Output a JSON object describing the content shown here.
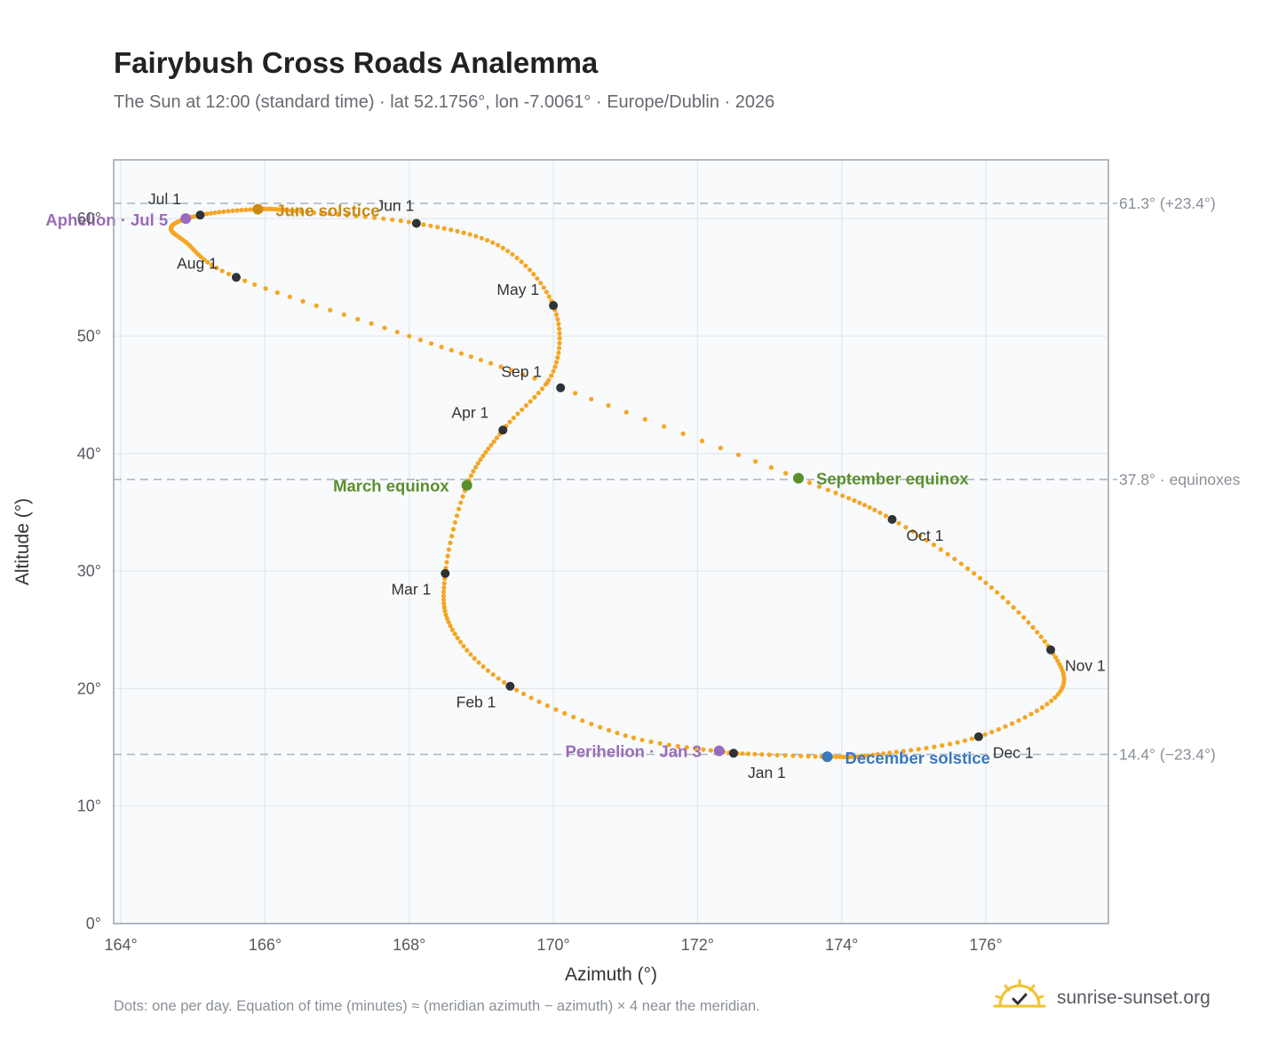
{
  "header": {
    "title": "Fairybush Cross Roads Analemma",
    "subtitle": "The Sun at 12:00 (standard time) · lat 52.1756°, lon -7.0061° · Europe/Dublin · 2026"
  },
  "footer": {
    "note": "Dots: one per day. Equation of time (minutes) ≈ (meridian azimuth − azimuth) × 4 near the meridian.",
    "brand": "sunrise-sunset.org",
    "brand_icon": "sun-check-icon"
  },
  "chart_data": {
    "type": "scatter",
    "xlabel": "Azimuth (°)",
    "ylabel": "Altitude (°)",
    "xlim": [
      163.9,
      177.7
    ],
    "ylim": [
      0,
      65
    ],
    "xticks": [
      164,
      166,
      168,
      170,
      172,
      174,
      176
    ],
    "yticks": [
      0,
      10,
      20,
      30,
      40,
      50,
      60
    ],
    "tick_suffix": "°",
    "grid": true,
    "colors": {
      "curve": "#f5a623",
      "month_marker": "#2f3237",
      "equinox": "#5a8f2e",
      "june_solstice": "#c98a12",
      "december_solstice": "#3a78c0",
      "apsis": "#9a6bb8",
      "reference_line": "#aab4c0",
      "plot_background": "#f8fafc",
      "plot_border": "#9aa4b0",
      "grid": "#e3e8ee"
    },
    "reference_lines": [
      {
        "y": 61.3,
        "label": "61.3° (+23.4°)"
      },
      {
        "y": 37.8,
        "label": "37.8° · equinoxes"
      },
      {
        "y": 14.4,
        "label": "14.4° (−23.4°)"
      }
    ],
    "month_markers": [
      {
        "label": "Jan 1",
        "x": 172.5,
        "y": 14.5
      },
      {
        "label": "Feb 1",
        "x": 169.4,
        "y": 20.2
      },
      {
        "label": "Mar 1",
        "x": 168.5,
        "y": 29.8
      },
      {
        "label": "Apr 1",
        "x": 169.3,
        "y": 42.0
      },
      {
        "label": "May 1",
        "x": 170.0,
        "y": 52.6
      },
      {
        "label": "Jun 1",
        "x": 168.1,
        "y": 59.6
      },
      {
        "label": "Jul 1",
        "x": 165.1,
        "y": 60.3
      },
      {
        "label": "Aug 1",
        "x": 165.6,
        "y": 55.0
      },
      {
        "label": "Sep 1",
        "x": 170.1,
        "y": 45.6
      },
      {
        "label": "Oct 1",
        "x": 174.7,
        "y": 34.4
      },
      {
        "label": "Nov 1",
        "x": 176.9,
        "y": 23.3
      },
      {
        "label": "Dec 1",
        "x": 175.9,
        "y": 15.9
      }
    ],
    "events": [
      {
        "label": "June solstice",
        "x": 165.9,
        "y": 60.8,
        "kind": "june_solstice"
      },
      {
        "label": "Aphelion · Jul 5",
        "x": 164.9,
        "y": 60.0,
        "kind": "apsis"
      },
      {
        "label": "March equinox",
        "x": 168.8,
        "y": 37.3,
        "kind": "equinox"
      },
      {
        "label": "September equinox",
        "x": 173.4,
        "y": 37.9,
        "kind": "equinox"
      },
      {
        "label": "Perihelion · Jan 3",
        "x": 172.3,
        "y": 14.7,
        "kind": "apsis"
      },
      {
        "label": "December solstice",
        "x": 173.8,
        "y": 14.2,
        "kind": "december_solstice"
      }
    ],
    "daily_path": {
      "description_points_per_day": 1,
      "anchors": [
        [
          172.5,
          14.5
        ],
        [
          171.0,
          16.0
        ],
        [
          169.4,
          20.2
        ],
        [
          168.6,
          25.0
        ],
        [
          168.5,
          29.8
        ],
        [
          168.8,
          37.3
        ],
        [
          169.3,
          42.0
        ],
        [
          170.0,
          47.0
        ],
        [
          170.0,
          52.6
        ],
        [
          169.3,
          57.5
        ],
        [
          168.1,
          59.6
        ],
        [
          166.5,
          60.6
        ],
        [
          165.9,
          60.8
        ],
        [
          165.1,
          60.3
        ],
        [
          164.7,
          59.3
        ],
        [
          164.9,
          58.0
        ],
        [
          165.6,
          55.0
        ],
        [
          168.0,
          50.0
        ],
        [
          170.1,
          45.6
        ],
        [
          173.4,
          37.9
        ],
        [
          174.7,
          34.4
        ],
        [
          176.0,
          29.0
        ],
        [
          176.9,
          23.3
        ],
        [
          177.0,
          19.5
        ],
        [
          175.9,
          15.9
        ],
        [
          174.5,
          14.4
        ],
        [
          173.8,
          14.2
        ],
        [
          172.5,
          14.5
        ]
      ]
    }
  }
}
